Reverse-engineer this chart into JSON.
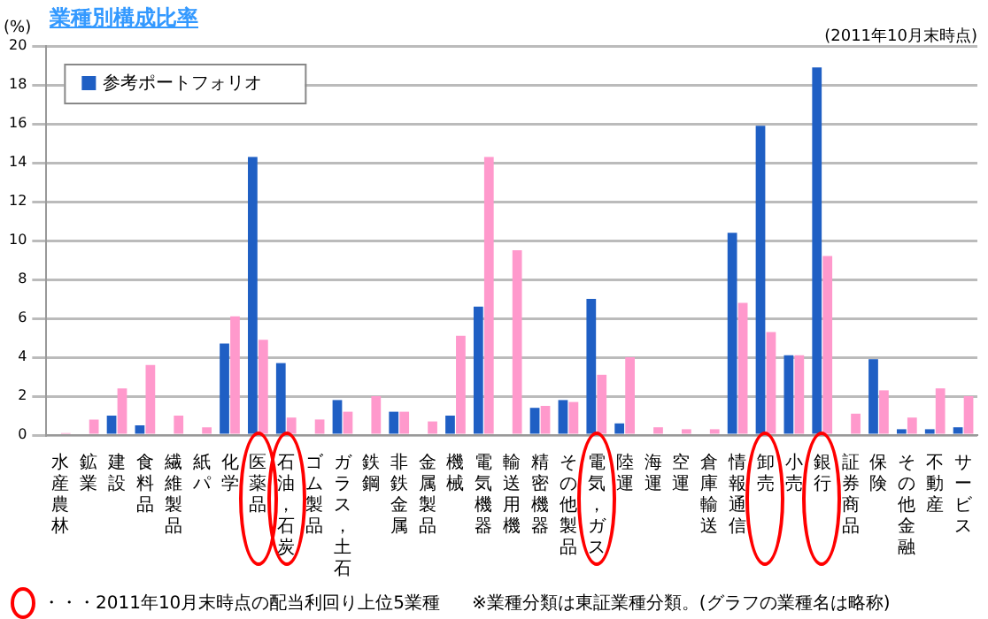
{
  "chart_data": {
    "type": "bar",
    "title": "業種別構成比率",
    "ylabel": "(%)",
    "categories": [
      "水産農林",
      "鉱業",
      "建設",
      "食料品",
      "繊維製品",
      "紙パ",
      "化学",
      "医薬品",
      "石油，石炭",
      "ゴム製品",
      "ガラス，土石",
      "鉄鋼",
      "非鉄金属",
      "金属製品",
      "機械",
      "電気機器",
      "輸送用機",
      "精密機器",
      "その他製品",
      "電気，ガス",
      "陸運",
      "海運",
      "空運",
      "倉庫輸送",
      "情報通信",
      "卸売",
      "小売",
      "銀行",
      "証券商品",
      "保険",
      "その他金融",
      "不動産",
      "サービス"
    ],
    "series": [
      {
        "name": "参考ポートフォリオ",
        "color": "#1f5fc4",
        "values": [
          0,
          0,
          1.0,
          0.5,
          0,
          0,
          4.7,
          14.3,
          3.7,
          0,
          1.8,
          0,
          1.2,
          0,
          1.0,
          6.6,
          0,
          1.4,
          1.8,
          7.0,
          0.6,
          0,
          0,
          0,
          10.4,
          15.9,
          4.1,
          18.9,
          0,
          3.9,
          0.3,
          0.3,
          0.4
        ]
      },
      {
        "color": "#ff99cc",
        "values": [
          0.1,
          0.8,
          2.4,
          3.6,
          1.0,
          0.4,
          6.1,
          4.9,
          0.9,
          0.8,
          1.2,
          2.0,
          1.2,
          0.7,
          5.1,
          14.3,
          9.5,
          1.5,
          1.7,
          3.1,
          4.0,
          0.4,
          0.3,
          0.3,
          6.8,
          5.3,
          4.1,
          9.2,
          1.1,
          2.3,
          0.9,
          2.4,
          2.0
        ]
      }
    ],
    "ylim": [
      0,
      20
    ],
    "yticks": [
      0,
      2,
      4,
      6,
      8,
      10,
      12,
      14,
      16,
      18,
      20
    ],
    "grid": "y",
    "legend": "top left",
    "annotations": [
      "(2011年10月末時点)",
      "・・・2011年10月末時点の配当利回り上位5業種",
      "※業種分類は東証業種分類。(グラフの業種名は略称)"
    ]
  }
}
